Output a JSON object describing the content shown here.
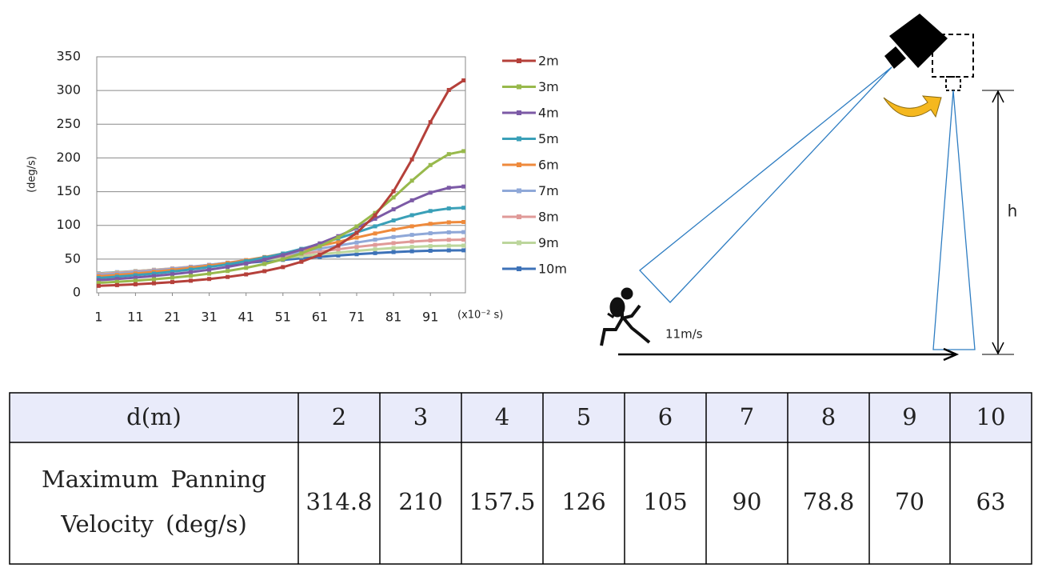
{
  "chart_data": {
    "type": "line",
    "xlabel": "(x10⁻² s)",
    "ylabel": "(deg/s)",
    "x": [
      1,
      6,
      11,
      16,
      21,
      26,
      31,
      36,
      41,
      46,
      51,
      56,
      61,
      66,
      71,
      76,
      81,
      86,
      91,
      96,
      100
    ],
    "xlim": [
      0.5,
      100.5
    ],
    "xticks": [
      1,
      11,
      21,
      31,
      41,
      51,
      61,
      71,
      81,
      91
    ],
    "ylim": [
      0,
      350
    ],
    "yticks": [
      0,
      50,
      100,
      150,
      200,
      250,
      300,
      350
    ],
    "grid": true,
    "series": [
      {
        "name": "2m",
        "color": "#b5403a",
        "values": [
          10.3,
          11.4,
          12.6,
          14.1,
          15.9,
          17.9,
          20.5,
          23.5,
          27.3,
          32.1,
          38.1,
          46.0,
          56.3,
          70.0,
          88.8,
          114.9,
          150.6,
          197.9,
          253.1,
          300.8,
          315
        ]
      },
      {
        "name": "3m",
        "color": "#98b94c",
        "values": [
          14.8,
          16.3,
          18.0,
          20.0,
          22.4,
          25.1,
          28.4,
          32.3,
          37.0,
          42.7,
          49.6,
          58.4,
          69.0,
          82.2,
          98.5,
          118.4,
          141.4,
          166.3,
          189.5,
          205.7,
          210.1
        ]
      },
      {
        "name": "4m",
        "color": "#7c5aa6",
        "values": [
          18.7,
          20.5,
          22.5,
          24.9,
          27.6,
          30.6,
          34.3,
          38.4,
          43.4,
          49.1,
          55.9,
          64.0,
          73.3,
          84.0,
          96.2,
          109.8,
          123.8,
          137.2,
          148.5,
          155.7,
          157.6
        ]
      },
      {
        "name": "5m",
        "color": "#3aa0b8",
        "values": [
          21.9,
          23.9,
          26.1,
          28.5,
          31.4,
          34.5,
          38.2,
          42.2,
          47.0,
          52.3,
          58.2,
          65.1,
          72.6,
          80.8,
          89.5,
          98.6,
          107.3,
          115.1,
          121.3,
          125.1,
          126.1
        ]
      },
      {
        "name": "6m",
        "color": "#ee8a3c",
        "values": [
          24.5,
          26.5,
          28.7,
          31.1,
          33.9,
          37.0,
          40.4,
          44.2,
          48.4,
          53.0,
          58.1,
          63.7,
          69.5,
          75.6,
          81.9,
          88.0,
          93.7,
          98.6,
          102.3,
          104.5,
          105.0
        ]
      },
      {
        "name": "7m",
        "color": "#8fa8d8",
        "values": [
          26.3,
          28.3,
          30.5,
          32.8,
          35.4,
          38.3,
          41.4,
          44.7,
          48.4,
          52.3,
          56.5,
          60.9,
          65.5,
          70.0,
          74.5,
          78.8,
          82.7,
          85.9,
          88.3,
          89.7,
          90.0
        ]
      },
      {
        "name": "8m",
        "color": "#e09a98",
        "values": [
          27.6,
          29.5,
          31.6,
          33.7,
          36.1,
          38.7,
          41.5,
          44.4,
          47.5,
          50.8,
          54.2,
          57.7,
          61.2,
          64.6,
          68.0,
          71.0,
          73.7,
          76.0,
          77.6,
          78.5,
          78.8
        ]
      },
      {
        "name": "9m",
        "color": "#bcd69c",
        "values": [
          28.4,
          30.2,
          32.1,
          34.1,
          36.2,
          38.5,
          40.9,
          43.4,
          46.1,
          48.8,
          51.5,
          54.3,
          57.1,
          59.7,
          62.2,
          64.5,
          66.4,
          68.0,
          69.2,
          69.9,
          70.0
        ]
      },
      {
        "name": "10m",
        "color": "#3d72b8",
        "values": [
          28.8,
          30.5,
          32.2,
          34.0,
          35.9,
          37.9,
          40.0,
          42.1,
          44.4,
          46.6,
          48.8,
          51.1,
          53.2,
          55.3,
          57.2,
          58.9,
          60.4,
          61.6,
          62.4,
          62.9,
          63.0
        ]
      }
    ]
  },
  "diagram": {
    "height_label": "h",
    "speed_label": "11m/s"
  },
  "table": {
    "header": [
      "d(m)",
      2,
      3,
      4,
      5,
      6,
      7,
      8,
      9,
      10
    ],
    "rows": [
      {
        "label": [
          "Maximum Panning",
          "Velocity (deg/s)"
        ],
        "values": [
          314.8,
          210,
          157.5,
          126,
          105,
          90,
          78.8,
          70,
          63
        ]
      }
    ]
  }
}
